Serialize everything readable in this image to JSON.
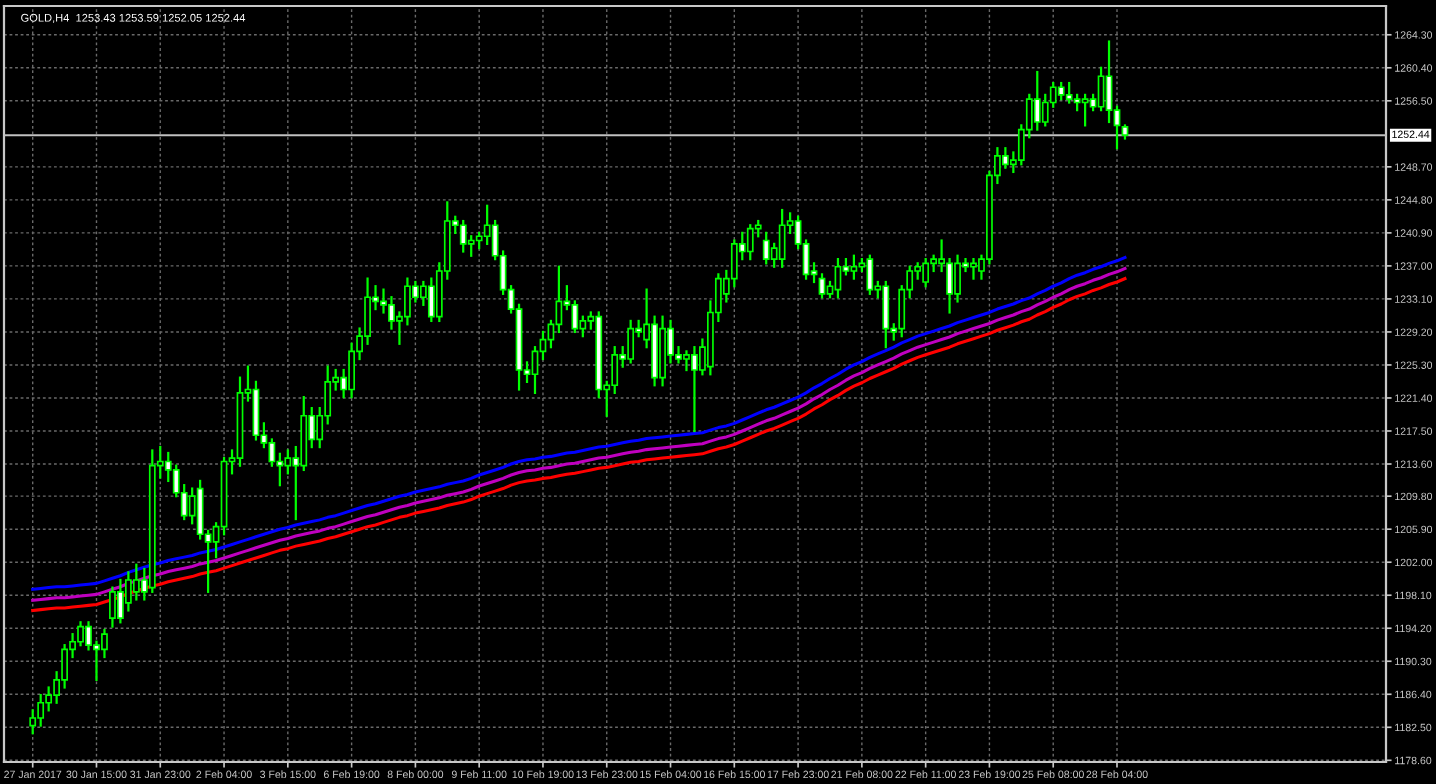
{
  "chart_data": {
    "type": "candlestick",
    "title": "GOLD,H4  1253.43 1253.59 1252.05 1252.44",
    "categories": [
      "27 Jan 2017",
      null,
      null,
      null,
      null,
      null,
      null,
      null,
      "30 Jan 15:00",
      null,
      null,
      null,
      null,
      null,
      null,
      null,
      "31 Jan 23:00",
      null,
      null,
      null,
      null,
      null,
      null,
      null,
      "2 Feb 04:00",
      null,
      null,
      null,
      null,
      null,
      null,
      null,
      "3 Feb 15:00",
      null,
      null,
      null,
      null,
      null,
      null,
      null,
      "6 Feb 19:00",
      null,
      null,
      null,
      null,
      null,
      null,
      null,
      "8 Feb 00:00",
      null,
      null,
      null,
      null,
      null,
      null,
      null,
      "9 Feb 11:00",
      null,
      null,
      null,
      null,
      null,
      null,
      null,
      "10 Feb 19:00",
      null,
      null,
      null,
      null,
      null,
      null,
      null,
      "13 Feb 23:00",
      null,
      null,
      null,
      null,
      null,
      null,
      null,
      "15 Feb 04:00",
      null,
      null,
      null,
      null,
      null,
      null,
      null,
      "16 Feb 15:00",
      null,
      null,
      null,
      null,
      null,
      null,
      null,
      "17 Feb 23:00",
      null,
      null,
      null,
      null,
      null,
      null,
      null,
      "21 Feb 08:00",
      null,
      null,
      null,
      null,
      null,
      null,
      null,
      "22 Feb 11:00",
      null,
      null,
      null,
      null,
      null,
      null,
      null,
      "23 Feb 19:00",
      null,
      null,
      null,
      null,
      null,
      null,
      null,
      "25 Feb 08:00",
      null,
      null,
      null,
      null,
      null,
      null,
      null,
      "28 Feb 04:00",
      null
    ],
    "ohlc": [
      [
        1182.7,
        1184.5,
        1181.8,
        1183.6
      ],
      [
        1183.6,
        1186.3,
        1182.7,
        1185.4
      ],
      [
        1185.4,
        1187.2,
        1184.5,
        1186.3
      ],
      [
        1186.3,
        1189.0,
        1185.4,
        1188.1
      ],
      [
        1188.1,
        1192.2,
        1187.2,
        1191.7
      ],
      [
        1191.7,
        1193.5,
        1190.8,
        1192.6
      ],
      [
        1192.6,
        1194.9,
        1192.2,
        1194.4
      ],
      [
        1194.4,
        1194.9,
        1191.7,
        1192.2
      ],
      [
        1192.2,
        1192.6,
        1188.1,
        1191.7
      ],
      [
        1191.7,
        1194.0,
        1190.8,
        1193.5
      ],
      [
        1195.4,
        1199.0,
        1194.4,
        1198.5
      ],
      [
        1198.5,
        1199.9,
        1194.9,
        1195.4
      ],
      [
        1197.2,
        1200.8,
        1196.3,
        1199.9
      ],
      [
        1198.5,
        1201.7,
        1197.6,
        1199.9
      ],
      [
        1199.9,
        1201.2,
        1197.6,
        1198.5
      ],
      [
        1199.0,
        1215.2,
        1198.5,
        1213.4
      ],
      [
        1213.4,
        1215.6,
        1212.0,
        1213.9
      ],
      [
        1213.9,
        1214.9,
        1211.6,
        1212.9
      ],
      [
        1212.9,
        1213.4,
        1209.8,
        1210.2
      ],
      [
        1210.2,
        1211.1,
        1207.1,
        1207.5
      ],
      [
        1207.5,
        1210.7,
        1206.6,
        1209.8
      ],
      [
        1210.7,
        1211.6,
        1204.8,
        1205.3
      ],
      [
        1205.3,
        1205.7,
        1198.5,
        1204.4
      ],
      [
        1204.4,
        1206.6,
        1202.6,
        1206.2
      ],
      [
        1206.2,
        1214.3,
        1205.3,
        1213.9
      ],
      [
        1213.9,
        1215.2,
        1212.5,
        1214.3
      ],
      [
        1214.3,
        1223.8,
        1213.4,
        1222.0
      ],
      [
        1222.0,
        1225.1,
        1221.1,
        1222.4
      ],
      [
        1222.4,
        1223.3,
        1216.5,
        1217.0
      ],
      [
        1217.0,
        1218.4,
        1215.6,
        1216.1
      ],
      [
        1216.1,
        1216.5,
        1213.4,
        1213.9
      ],
      [
        1213.9,
        1214.8,
        1211.1,
        1213.4
      ],
      [
        1213.4,
        1215.2,
        1212.5,
        1214.3
      ],
      [
        1214.3,
        1215.6,
        1207.1,
        1213.4
      ],
      [
        1213.4,
        1221.5,
        1212.9,
        1219.3
      ],
      [
        1219.3,
        1220.2,
        1215.6,
        1216.5
      ],
      [
        1216.5,
        1220.2,
        1215.6,
        1219.3
      ],
      [
        1219.3,
        1225.1,
        1218.4,
        1223.3
      ],
      [
        1223.3,
        1224.7,
        1222.4,
        1223.8
      ],
      [
        1223.8,
        1224.7,
        1221.5,
        1222.4
      ],
      [
        1222.4,
        1227.8,
        1221.5,
        1226.9
      ],
      [
        1226.9,
        1229.6,
        1226.0,
        1228.7
      ],
      [
        1228.7,
        1235.5,
        1227.8,
        1233.3
      ],
      [
        1233.3,
        1234.6,
        1231.9,
        1232.8
      ],
      [
        1232.8,
        1234.2,
        1231.5,
        1232.4
      ],
      [
        1232.4,
        1233.3,
        1229.6,
        1230.5
      ],
      [
        1230.5,
        1231.5,
        1227.8,
        1231.0
      ],
      [
        1231.0,
        1235.5,
        1230.1,
        1234.6
      ],
      [
        1234.6,
        1235.1,
        1232.8,
        1233.3
      ],
      [
        1233.3,
        1235.1,
        1232.4,
        1234.6
      ],
      [
        1234.6,
        1235.5,
        1230.5,
        1231.0
      ],
      [
        1231.0,
        1237.3,
        1230.5,
        1236.4
      ],
      [
        1236.4,
        1244.5,
        1235.5,
        1242.3
      ],
      [
        1242.3,
        1242.8,
        1240.9,
        1241.8
      ],
      [
        1241.8,
        1242.3,
        1238.7,
        1239.6
      ],
      [
        1239.6,
        1240.5,
        1238.2,
        1240.0
      ],
      [
        1240.0,
        1240.9,
        1239.1,
        1240.5
      ],
      [
        1240.5,
        1244.1,
        1239.6,
        1241.8
      ],
      [
        1241.8,
        1242.3,
        1237.8,
        1238.2
      ],
      [
        1238.2,
        1238.7,
        1233.7,
        1234.2
      ],
      [
        1234.2,
        1234.6,
        1231.5,
        1231.9
      ],
      [
        1231.9,
        1232.4,
        1222.4,
        1224.7
      ],
      [
        1224.7,
        1225.6,
        1223.3,
        1224.2
      ],
      [
        1224.2,
        1227.4,
        1222.0,
        1226.9
      ],
      [
        1226.9,
        1229.2,
        1226.0,
        1228.3
      ],
      [
        1228.3,
        1230.5,
        1227.4,
        1230.1
      ],
      [
        1230.1,
        1236.9,
        1229.2,
        1232.8
      ],
      [
        1232.8,
        1234.6,
        1231.9,
        1232.4
      ],
      [
        1232.4,
        1232.8,
        1229.2,
        1229.6
      ],
      [
        1229.6,
        1231.0,
        1228.7,
        1230.5
      ],
      [
        1230.5,
        1231.5,
        1229.6,
        1231.0
      ],
      [
        1231.0,
        1231.5,
        1221.5,
        1222.4
      ],
      [
        1222.4,
        1223.3,
        1219.3,
        1222.9
      ],
      [
        1222.9,
        1227.4,
        1222.0,
        1226.5
      ],
      [
        1226.5,
        1227.4,
        1225.1,
        1226.0
      ],
      [
        1226.0,
        1230.5,
        1225.6,
        1229.6
      ],
      [
        1229.6,
        1230.5,
        1228.7,
        1229.2
      ],
      [
        1228.3,
        1234.2,
        1227.4,
        1230.1
      ],
      [
        1230.1,
        1231.0,
        1222.9,
        1223.8
      ],
      [
        1223.8,
        1231.0,
        1222.9,
        1229.6
      ],
      [
        1229.6,
        1230.5,
        1225.6,
        1226.5
      ],
      [
        1226.5,
        1227.4,
        1225.6,
        1226.0
      ],
      [
        1226.0,
        1226.9,
        1224.7,
        1226.5
      ],
      [
        1226.5,
        1227.4,
        1217.5,
        1224.7
      ],
      [
        1224.7,
        1228.3,
        1224.2,
        1227.4
      ],
      [
        1225.1,
        1232.8,
        1224.2,
        1231.5
      ],
      [
        1231.5,
        1236.0,
        1230.5,
        1235.5
      ],
      [
        1233.7,
        1236.4,
        1232.8,
        1235.5
      ],
      [
        1235.5,
        1240.0,
        1234.6,
        1239.6
      ],
      [
        1239.6,
        1240.9,
        1237.8,
        1238.7
      ],
      [
        1238.7,
        1241.8,
        1237.8,
        1241.4
      ],
      [
        1241.4,
        1242.3,
        1240.5,
        1241.8
      ],
      [
        1240.0,
        1240.9,
        1237.3,
        1237.8
      ],
      [
        1237.8,
        1239.6,
        1236.9,
        1239.1
      ],
      [
        1237.8,
        1243.6,
        1236.9,
        1241.8
      ],
      [
        1241.8,
        1243.2,
        1240.9,
        1242.3
      ],
      [
        1242.3,
        1242.8,
        1239.1,
        1239.6
      ],
      [
        1239.6,
        1240.0,
        1235.5,
        1236.0
      ],
      [
        1236.4,
        1237.3,
        1235.1,
        1236.0
      ],
      [
        1235.5,
        1236.0,
        1233.3,
        1233.7
      ],
      [
        1233.7,
        1235.1,
        1233.3,
        1234.6
      ],
      [
        1234.2,
        1237.8,
        1233.3,
        1236.9
      ],
      [
        1236.9,
        1237.8,
        1236.0,
        1236.4
      ],
      [
        1236.4,
        1238.2,
        1235.5,
        1236.9
      ],
      [
        1236.9,
        1237.8,
        1236.4,
        1237.3
      ],
      [
        1237.8,
        1238.2,
        1233.7,
        1234.2
      ],
      [
        1234.2,
        1235.1,
        1233.3,
        1234.6
      ],
      [
        1234.6,
        1235.1,
        1227.4,
        1229.6
      ],
      [
        1229.6,
        1230.1,
        1228.3,
        1229.2
      ],
      [
        1229.6,
        1234.6,
        1228.7,
        1234.2
      ],
      [
        1234.2,
        1236.9,
        1233.3,
        1236.4
      ],
      [
        1236.4,
        1237.3,
        1235.5,
        1236.9
      ],
      [
        1235.1,
        1237.8,
        1234.6,
        1237.3
      ],
      [
        1237.3,
        1238.2,
        1236.4,
        1237.8
      ],
      [
        1237.3,
        1240.0,
        1236.4,
        1237.8
      ],
      [
        1237.3,
        1237.8,
        1231.5,
        1233.7
      ],
      [
        1233.7,
        1238.2,
        1232.8,
        1237.3
      ],
      [
        1237.3,
        1237.8,
        1236.4,
        1236.9
      ],
      [
        1236.9,
        1237.8,
        1235.5,
        1237.3
      ],
      [
        1236.4,
        1238.2,
        1235.5,
        1237.8
      ],
      [
        1237.8,
        1248.1,
        1237.3,
        1247.7
      ],
      [
        1247.7,
        1250.9,
        1246.8,
        1250.0
      ],
      [
        1250.0,
        1250.9,
        1248.6,
        1249.0
      ],
      [
        1249.0,
        1250.4,
        1248.1,
        1249.5
      ],
      [
        1249.5,
        1253.6,
        1249.0,
        1253.1
      ],
      [
        1253.1,
        1257.2,
        1252.2,
        1256.7
      ],
      [
        1256.7,
        1259.9,
        1253.1,
        1254.0
      ],
      [
        1254.0,
        1257.2,
        1253.6,
        1256.3
      ],
      [
        1256.3,
        1258.6,
        1255.8,
        1258.1
      ],
      [
        1258.1,
        1258.6,
        1256.7,
        1257.2
      ],
      [
        1257.2,
        1258.6,
        1256.3,
        1256.7
      ],
      [
        1256.7,
        1257.2,
        1255.4,
        1256.3
      ],
      [
        1256.3,
        1257.2,
        1253.6,
        1256.7
      ],
      [
        1256.7,
        1257.2,
        1255.4,
        1255.8
      ],
      [
        1255.8,
        1260.4,
        1255.4,
        1259.4
      ],
      [
        1259.4,
        1263.5,
        1254.0,
        1255.4
      ],
      [
        1255.4,
        1255.8,
        1250.9,
        1253.6
      ],
      [
        1253.43,
        1253.59,
        1252.05,
        1252.44
      ]
    ],
    "series": [
      {
        "type": "line",
        "color": "#0000ff",
        "values": [
          1198.8,
          1198.9,
          1199.0,
          1199.1,
          1199.1,
          1199.2,
          1199.3,
          1199.4,
          1199.5,
          1199.8,
          1200.1,
          1200.4,
          1200.8,
          1201.1,
          1201.4,
          1201.7,
          1201.9,
          1202.2,
          1202.4,
          1202.6,
          1202.8,
          1203.1,
          1203.3,
          1203.5,
          1203.8,
          1204.1,
          1204.4,
          1204.7,
          1205.0,
          1205.3,
          1205.6,
          1205.9,
          1206.1,
          1206.4,
          1206.6,
          1206.8,
          1207.0,
          1207.3,
          1207.5,
          1207.8,
          1208.1,
          1208.4,
          1208.7,
          1208.9,
          1209.2,
          1209.5,
          1209.8,
          1210.0,
          1210.3,
          1210.5,
          1210.7,
          1210.9,
          1211.2,
          1211.4,
          1211.6,
          1211.9,
          1212.3,
          1212.6,
          1212.9,
          1213.2,
          1213.6,
          1213.9,
          1214.1,
          1214.2,
          1214.4,
          1214.5,
          1214.7,
          1214.9,
          1215.0,
          1215.2,
          1215.4,
          1215.6,
          1215.7,
          1215.9,
          1216.1,
          1216.3,
          1216.4,
          1216.6,
          1216.7,
          1216.8,
          1216.9,
          1217.0,
          1217.1,
          1217.2,
          1217.3,
          1217.6,
          1217.9,
          1218.1,
          1218.4,
          1218.8,
          1219.2,
          1219.6,
          1220.0,
          1220.3,
          1220.7,
          1221.1,
          1221.5,
          1222.0,
          1222.6,
          1223.1,
          1223.7,
          1224.2,
          1224.8,
          1225.3,
          1225.7,
          1226.2,
          1226.6,
          1227.0,
          1227.4,
          1227.9,
          1228.3,
          1228.7,
          1229.0,
          1229.3,
          1229.6,
          1229.9,
          1230.3,
          1230.6,
          1230.9,
          1231.2,
          1231.5,
          1231.9,
          1232.2,
          1232.5,
          1232.9,
          1233.2,
          1233.7,
          1234.1,
          1234.6,
          1235.0,
          1235.5,
          1235.9,
          1236.2,
          1236.6,
          1236.9,
          1237.3,
          1237.6,
          1238.0
        ]
      },
      {
        "type": "line",
        "color": "#c000c0",
        "values": [
          1197.5,
          1197.6,
          1197.7,
          1197.8,
          1197.8,
          1197.9,
          1198.0,
          1198.1,
          1198.2,
          1198.5,
          1198.8,
          1199.1,
          1199.5,
          1199.8,
          1200.1,
          1200.4,
          1200.6,
          1200.9,
          1201.1,
          1201.3,
          1201.5,
          1201.8,
          1202.0,
          1202.2,
          1202.5,
          1202.8,
          1203.1,
          1203.4,
          1203.7,
          1204.0,
          1204.3,
          1204.6,
          1204.8,
          1205.1,
          1205.3,
          1205.5,
          1205.7,
          1206.0,
          1206.2,
          1206.5,
          1206.8,
          1207.1,
          1207.4,
          1207.6,
          1207.9,
          1208.2,
          1208.5,
          1208.7,
          1209.0,
          1209.2,
          1209.4,
          1209.6,
          1209.9,
          1210.1,
          1210.3,
          1210.6,
          1211.0,
          1211.3,
          1211.6,
          1211.9,
          1212.3,
          1212.6,
          1212.8,
          1212.9,
          1213.1,
          1213.2,
          1213.4,
          1213.6,
          1213.7,
          1213.9,
          1214.1,
          1214.3,
          1214.4,
          1214.6,
          1214.8,
          1215.0,
          1215.1,
          1215.3,
          1215.4,
          1215.5,
          1215.6,
          1215.7,
          1215.8,
          1215.9,
          1216.0,
          1216.3,
          1216.6,
          1216.8,
          1217.1,
          1217.5,
          1217.9,
          1218.3,
          1218.7,
          1219.0,
          1219.4,
          1219.8,
          1220.2,
          1220.7,
          1221.3,
          1221.8,
          1222.4,
          1222.9,
          1223.5,
          1224.0,
          1224.4,
          1224.9,
          1225.3,
          1225.7,
          1226.1,
          1226.6,
          1227.0,
          1227.4,
          1227.7,
          1228.0,
          1228.3,
          1228.6,
          1229.0,
          1229.3,
          1229.6,
          1229.9,
          1230.2,
          1230.6,
          1230.9,
          1231.2,
          1231.6,
          1231.9,
          1232.4,
          1232.8,
          1233.3,
          1233.7,
          1234.2,
          1234.6,
          1234.9,
          1235.3,
          1235.6,
          1236.0,
          1236.3,
          1236.7
        ]
      },
      {
        "type": "line",
        "color": "#ff0000",
        "values": [
          1196.3,
          1196.4,
          1196.5,
          1196.6,
          1196.6,
          1196.7,
          1196.8,
          1196.9,
          1197.0,
          1197.3,
          1197.6,
          1197.9,
          1198.3,
          1198.6,
          1198.9,
          1199.2,
          1199.4,
          1199.7,
          1199.9,
          1200.1,
          1200.3,
          1200.6,
          1200.8,
          1201.0,
          1201.3,
          1201.6,
          1201.9,
          1202.2,
          1202.5,
          1202.8,
          1203.1,
          1203.4,
          1203.6,
          1203.9,
          1204.1,
          1204.3,
          1204.5,
          1204.8,
          1205.0,
          1205.3,
          1205.6,
          1205.9,
          1206.2,
          1206.4,
          1206.7,
          1207.0,
          1207.3,
          1207.5,
          1207.8,
          1208.0,
          1208.2,
          1208.4,
          1208.7,
          1208.9,
          1209.1,
          1209.4,
          1209.8,
          1210.1,
          1210.4,
          1210.7,
          1211.1,
          1211.4,
          1211.6,
          1211.7,
          1211.9,
          1212.0,
          1212.2,
          1212.4,
          1212.5,
          1212.7,
          1212.9,
          1213.1,
          1213.2,
          1213.4,
          1213.6,
          1213.8,
          1213.9,
          1214.1,
          1214.2,
          1214.3,
          1214.4,
          1214.5,
          1214.6,
          1214.7,
          1214.8,
          1215.1,
          1215.4,
          1215.6,
          1215.9,
          1216.3,
          1216.7,
          1217.1,
          1217.5,
          1217.8,
          1218.2,
          1218.6,
          1219.0,
          1219.5,
          1220.1,
          1220.6,
          1221.2,
          1221.7,
          1222.3,
          1222.8,
          1223.2,
          1223.7,
          1224.1,
          1224.5,
          1224.9,
          1225.4,
          1225.8,
          1226.2,
          1226.5,
          1226.8,
          1227.1,
          1227.4,
          1227.8,
          1228.1,
          1228.4,
          1228.7,
          1229.0,
          1229.4,
          1229.7,
          1230.0,
          1230.4,
          1230.7,
          1231.2,
          1231.6,
          1232.1,
          1232.5,
          1233.0,
          1233.4,
          1233.7,
          1234.1,
          1234.4,
          1234.8,
          1235.1,
          1235.5
        ]
      }
    ],
    "ylim": [
      1178.4,
      1267.7
    ],
    "yticks": [
      {
        "value": 1178.6,
        "label": "1178.60"
      },
      {
        "value": 1182.5,
        "label": "1182.50"
      },
      {
        "value": 1186.4,
        "label": "1186.40"
      },
      {
        "value": 1190.3,
        "label": "1190.30"
      },
      {
        "value": 1194.2,
        "label": "1194.20"
      },
      {
        "value": 1198.1,
        "label": "1198.10"
      },
      {
        "value": 1202.0,
        "label": "1202.00"
      },
      {
        "value": 1205.9,
        "label": "1205.90"
      },
      {
        "value": 1209.8,
        "label": "1209.80"
      },
      {
        "value": 1213.6,
        "label": "1213.60"
      },
      {
        "value": 1217.5,
        "label": "1217.50"
      },
      {
        "value": 1221.4,
        "label": "1221.40"
      },
      {
        "value": 1225.3,
        "label": "1225.30"
      },
      {
        "value": 1229.2,
        "label": "1229.20"
      },
      {
        "value": 1233.1,
        "label": "1233.10"
      },
      {
        "value": 1237.0,
        "label": "1237.00"
      },
      {
        "value": 1240.9,
        "label": "1240.90"
      },
      {
        "value": 1244.8,
        "label": "1244.80"
      },
      {
        "value": 1248.7,
        "label": "1248.70"
      },
      {
        "value": 1256.5,
        "label": "1256.50"
      },
      {
        "value": 1260.4,
        "label": "1260.40"
      },
      {
        "value": 1264.3,
        "label": "1264.30"
      }
    ],
    "ref_lines": [
      {
        "axis": "y",
        "value": 1252.44,
        "label": "1252.44",
        "color": "#c0c0c0"
      }
    ],
    "grid": true
  }
}
